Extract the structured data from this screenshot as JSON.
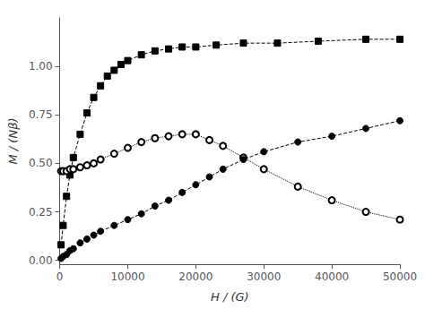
{
  "chart_data": {
    "type": "line",
    "xlabel": "H / (G)",
    "ylabel": "M / (Nβ)",
    "xlim": [
      0,
      50000
    ],
    "ylim": [
      -0.02,
      1.25
    ],
    "xticks": [
      0,
      10000,
      20000,
      30000,
      40000,
      50000
    ],
    "yticks": [
      {
        "value": 0.0,
        "label": "0.00"
      },
      {
        "value": 0.25,
        "label": "0.25"
      },
      {
        "value": 0.5,
        "label": "0.50"
      },
      {
        "value": 0.75,
        "label": "0.75"
      },
      {
        "value": 1.0,
        "label": "1.00"
      }
    ],
    "grid": false,
    "series": [
      {
        "color": "#000000",
        "marker": "square",
        "line_style": "dashed",
        "x": [
          200,
          500,
          1000,
          1500,
          2000,
          3000,
          4000,
          5000,
          6000,
          7000,
          8000,
          9000,
          10000,
          12000,
          14000,
          16000,
          18000,
          20000,
          23000,
          27000,
          32000,
          38000,
          45000,
          50000
        ],
        "values": [
          0.08,
          0.18,
          0.33,
          0.44,
          0.53,
          0.65,
          0.76,
          0.84,
          0.9,
          0.95,
          0.98,
          1.01,
          1.03,
          1.06,
          1.08,
          1.09,
          1.1,
          1.1,
          1.11,
          1.12,
          1.12,
          1.13,
          1.14,
          1.14
        ]
      },
      {
        "color": "#000000",
        "marker": "open_circle",
        "line_style": "dotted",
        "x": [
          200,
          500,
          1000,
          1500,
          2000,
          3000,
          4000,
          5000,
          6000,
          8000,
          10000,
          12000,
          14000,
          16000,
          18000,
          20000,
          22000,
          24000,
          27000,
          30000,
          35000,
          40000,
          45000,
          50000
        ],
        "values": [
          0.46,
          0.46,
          0.46,
          0.47,
          0.47,
          0.48,
          0.49,
          0.5,
          0.52,
          0.55,
          0.58,
          0.61,
          0.63,
          0.64,
          0.65,
          0.65,
          0.62,
          0.59,
          0.53,
          0.47,
          0.38,
          0.31,
          0.25,
          0.21
        ]
      },
      {
        "color": "#000000",
        "marker": "circle",
        "line_style": "dashed",
        "x": [
          200,
          500,
          1000,
          1500,
          2000,
          3000,
          4000,
          5000,
          6000,
          8000,
          10000,
          12000,
          14000,
          16000,
          18000,
          20000,
          22000,
          24000,
          27000,
          30000,
          35000,
          40000,
          45000,
          50000
        ],
        "values": [
          0.01,
          0.02,
          0.03,
          0.05,
          0.06,
          0.09,
          0.11,
          0.13,
          0.15,
          0.18,
          0.21,
          0.24,
          0.28,
          0.31,
          0.35,
          0.39,
          0.43,
          0.47,
          0.52,
          0.56,
          0.61,
          0.64,
          0.68,
          0.72
        ]
      }
    ]
  }
}
